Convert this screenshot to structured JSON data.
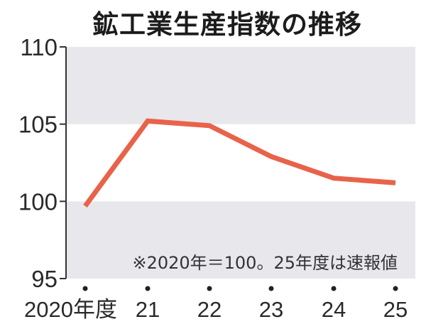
{
  "chart_data": {
    "type": "line",
    "title": "鉱工業生産指数の推移",
    "xlabel": "",
    "ylabel": "",
    "categories": [
      "2020年度",
      "21",
      "22",
      "23",
      "24",
      "25"
    ],
    "series": [
      {
        "name": "鉱工業生産指数",
        "values": [
          99.7,
          105.2,
          104.9,
          102.9,
          101.5,
          101.2
        ],
        "color": "#e8634a"
      }
    ],
    "ylim": [
      95,
      110
    ],
    "yticks": [
      "95",
      "100",
      "105",
      "110"
    ],
    "grid": "alternating horizontal bands",
    "band_color": "#e8e7ec",
    "annotation": "※2020年＝100。25年度は速報値",
    "legend": "none"
  }
}
